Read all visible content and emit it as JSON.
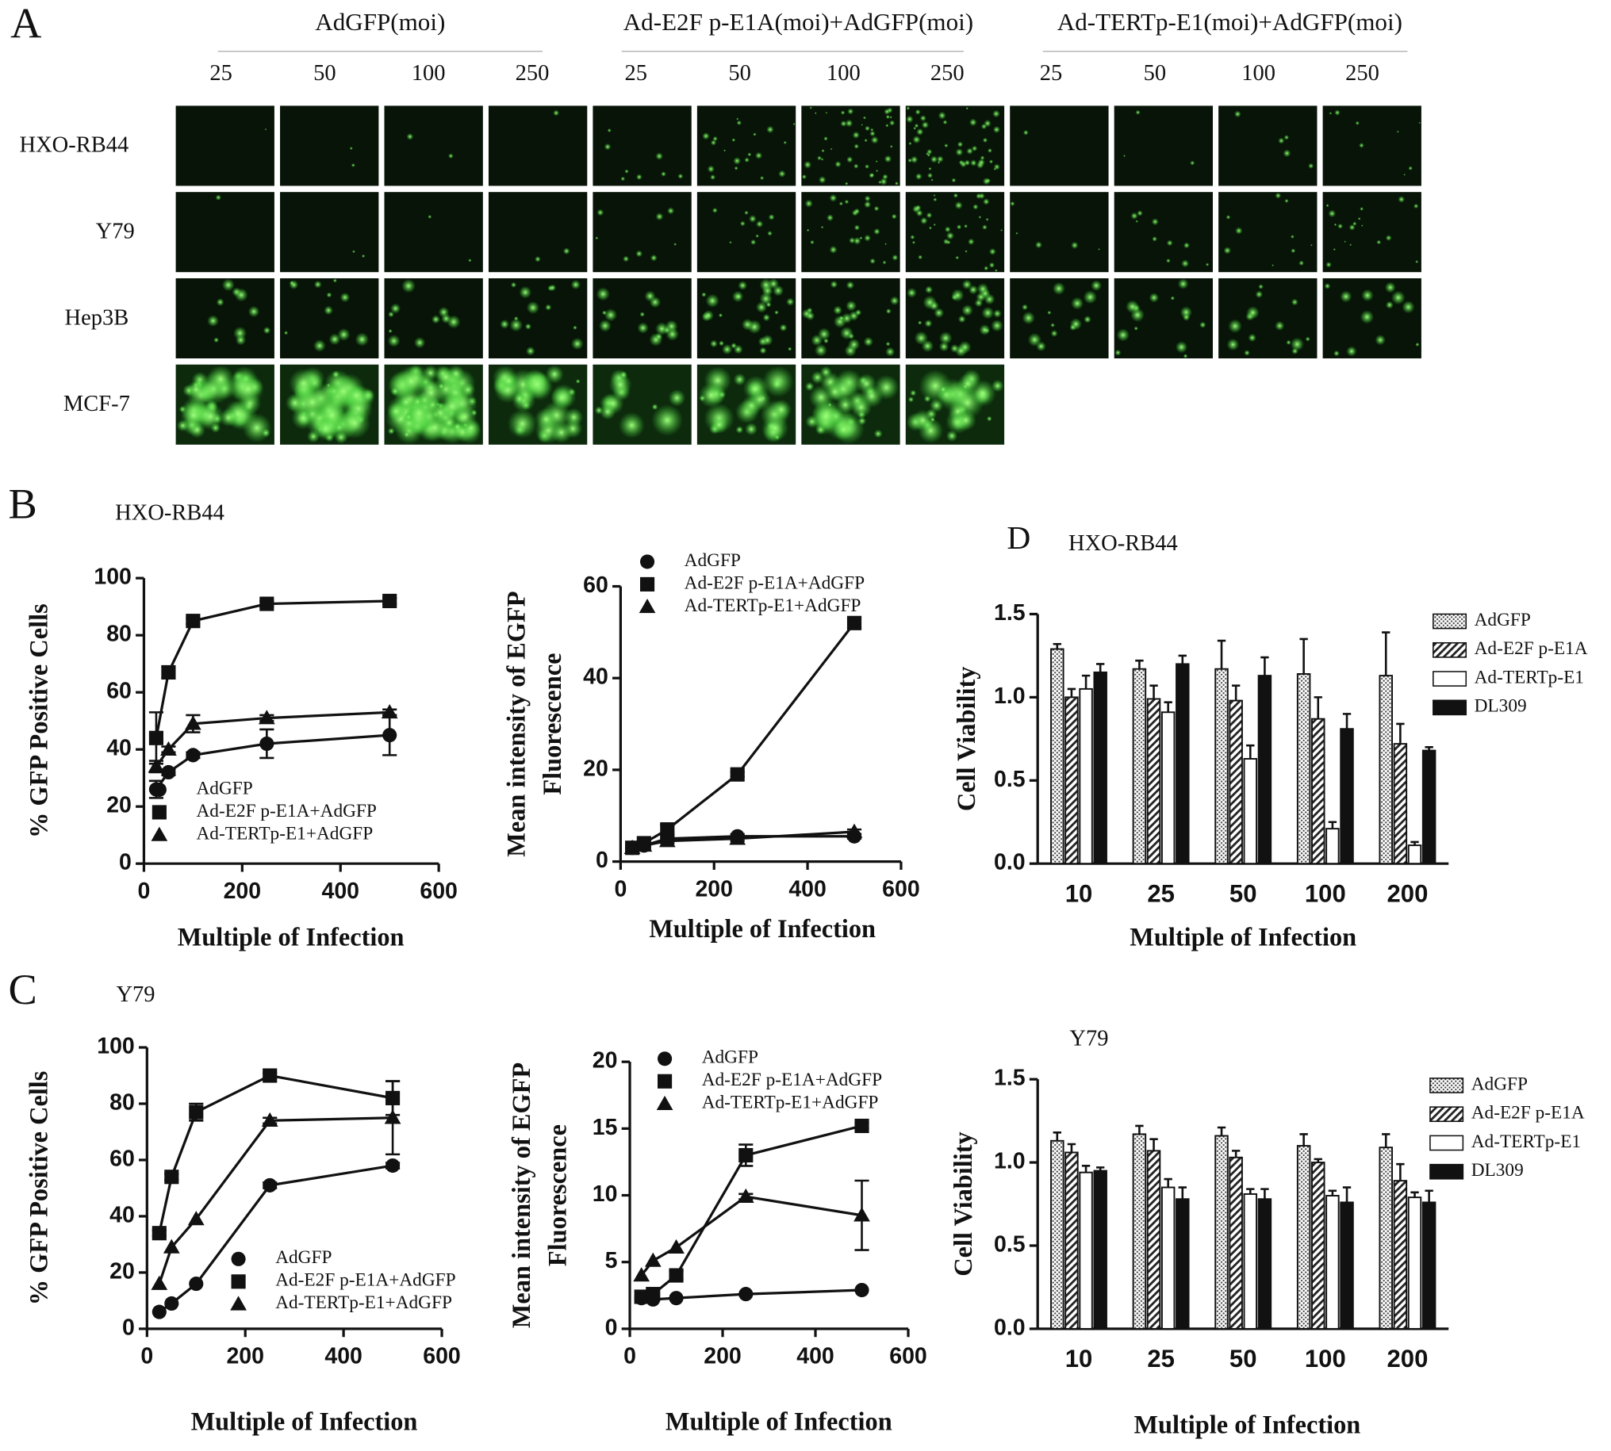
{
  "panel_labels": [
    "A",
    "B",
    "C",
    "D"
  ],
  "panel_a": {
    "groups": [
      "AdGFP(moi)",
      "Ad-E2F p-E1A(moi)+AdGFP(moi)",
      "Ad-TERTp-E1(moi)+AdGFP(moi)"
    ],
    "moi": [
      "25",
      "50",
      "100",
      "250"
    ],
    "rows": [
      "HXO-RB44",
      "Y79",
      "Hep3B",
      "MCF-7"
    ]
  },
  "chart_data": [
    {
      "type": "line",
      "title": "HXO-RB44",
      "y_label": [
        "% GFP Positive Cells"
      ],
      "x_label": "Multiple of Infection",
      "x": [
        25,
        50,
        100,
        250,
        500
      ],
      "xlim": [
        0,
        600
      ],
      "xticks": [
        0,
        200,
        400,
        600
      ],
      "ylim": [
        0,
        100
      ],
      "yticks": [
        0,
        20,
        40,
        60,
        80,
        100
      ],
      "legend": "lower right",
      "series": [
        {
          "name": "AdGFP",
          "color": "#111111",
          "marker": "circle",
          "values": [
            26,
            32,
            38,
            42,
            45
          ],
          "errors": [
            3,
            1,
            1,
            5,
            7
          ]
        },
        {
          "name": "Ad-E2F p-E1A+AdGFP",
          "color": "#111111",
          "marker": "square",
          "values": [
            44,
            67,
            85,
            91,
            92
          ],
          "errors": [
            9,
            2,
            1,
            1,
            1
          ]
        },
        {
          "name": "Ad-TERTp-E1+AdGFP",
          "color": "#111111",
          "marker": "triangle",
          "values": [
            34,
            40,
            49,
            51,
            53
          ],
          "errors": [
            2,
            1,
            3,
            1,
            1
          ]
        }
      ]
    },
    {
      "type": "line",
      "y_label": [
        "Mean intensity of EGFP",
        "Fluorescence"
      ],
      "x_label": "Multiple of Infection",
      "x": [
        25,
        50,
        100,
        250,
        500
      ],
      "xlim": [
        0,
        600
      ],
      "xticks": [
        0,
        200,
        400,
        600
      ],
      "ylim": [
        0,
        60
      ],
      "yticks": [
        0,
        20,
        40,
        60
      ],
      "legend": "upper left",
      "series": [
        {
          "name": "AdGFP",
          "color": "#111111",
          "marker": "circle",
          "values": [
            3,
            3.5,
            5,
            5.5,
            5.5
          ],
          "errors": [
            0,
            0,
            0.5,
            0.5,
            0.5
          ]
        },
        {
          "name": "Ad-E2F p-E1A+AdGFP",
          "color": "#111111",
          "marker": "square",
          "values": [
            3,
            4,
            7,
            19,
            52
          ],
          "errors": [
            0,
            0,
            1,
            0.5,
            1
          ]
        },
        {
          "name": "Ad-TERTp-E1+AdGFP",
          "color": "#111111",
          "marker": "triangle",
          "values": [
            3,
            3.5,
            4.5,
            5,
            6.5
          ],
          "errors": [
            0,
            0,
            0.5,
            0.5,
            0.5
          ]
        }
      ]
    },
    {
      "type": "bar",
      "title": "HXO-RB44",
      "y_label": [
        "Cell Viability"
      ],
      "x_label": "Multiple of Infection",
      "categories": [
        "10",
        "25",
        "50",
        "100",
        "200"
      ],
      "ylim": [
        0,
        1.5
      ],
      "yticks": [
        {
          "value": 0,
          "label": "0.0"
        },
        0.5,
        {
          "value": 1,
          "label": "1.0"
        },
        1.5
      ],
      "legend": "right",
      "series": [
        {
          "name": "AdGFP",
          "color": "#111111",
          "pattern": "dotted",
          "values": [
            1.29,
            1.17,
            1.17,
            1.14,
            1.13
          ],
          "errors": [
            0.03,
            0.05,
            0.17,
            0.21,
            0.26
          ]
        },
        {
          "name": "Ad-E2F p-E1A",
          "color": "#111111",
          "pattern": "hatched",
          "values": [
            1.0,
            0.99,
            0.98,
            0.87,
            0.72
          ],
          "errors": [
            0.05,
            0.08,
            0.09,
            0.13,
            0.12
          ]
        },
        {
          "name": "Ad-TERTp-E1",
          "color": "#111111",
          "pattern": "open",
          "values": [
            1.05,
            0.91,
            0.63,
            0.21,
            0.11
          ],
          "errors": [
            0.08,
            0.06,
            0.08,
            0.04,
            0.02
          ]
        },
        {
          "name": "DL309",
          "color": "#111111",
          "pattern": "solid",
          "values": [
            1.15,
            1.2,
            1.13,
            0.81,
            0.68
          ],
          "errors": [
            0.05,
            0.05,
            0.11,
            0.09,
            0.02
          ]
        }
      ]
    },
    {
      "type": "line",
      "title": "Y79",
      "y_label": [
        "% GFP Positive Cells"
      ],
      "x_label": "Multiple of Infection",
      "x": [
        25,
        50,
        100,
        250,
        500
      ],
      "xlim": [
        0,
        600
      ],
      "xticks": [
        0,
        200,
        400,
        600
      ],
      "ylim": [
        0,
        100
      ],
      "yticks": [
        0,
        20,
        40,
        60,
        80,
        100
      ],
      "legend": "lower right",
      "series": [
        {
          "name": "AdGFP",
          "color": "#111111",
          "marker": "circle",
          "values": [
            6,
            9,
            16,
            51,
            58
          ],
          "errors": [
            0,
            0,
            0,
            1,
            1
          ]
        },
        {
          "name": "Ad-E2F p-E1A+AdGFP",
          "color": "#111111",
          "marker": "square",
          "values": [
            34,
            54,
            77,
            90,
            82
          ],
          "errors": [
            1,
            1,
            3,
            1,
            6
          ]
        },
        {
          "name": "Ad-TERTp-E1+AdGFP",
          "color": "#111111",
          "marker": "triangle",
          "values": [
            16,
            29,
            39,
            74,
            75
          ],
          "errors": [
            0,
            0,
            0,
            1,
            13
          ]
        }
      ]
    },
    {
      "type": "line",
      "y_label": [
        "Mean intensity of EGFP",
        "Fluorescence"
      ],
      "x_label": "Multiple of Infection",
      "x": [
        25,
        50,
        100,
        250,
        500
      ],
      "xlim": [
        0,
        600
      ],
      "xticks": [
        0,
        200,
        400,
        600
      ],
      "ylim": [
        0,
        20
      ],
      "yticks": [
        0,
        5,
        10,
        15,
        20
      ],
      "legend": "upper left",
      "series": [
        {
          "name": "AdGFP",
          "color": "#111111",
          "marker": "circle",
          "values": [
            2.3,
            2.2,
            2.3,
            2.6,
            2.9
          ],
          "errors": [
            0,
            0,
            0,
            0,
            0
          ]
        },
        {
          "name": "Ad-E2F p-E1A+AdGFP",
          "color": "#111111",
          "marker": "square",
          "values": [
            2.4,
            2.6,
            4,
            13,
            15.2
          ],
          "errors": [
            0,
            0,
            0.3,
            0.8,
            0.2
          ]
        },
        {
          "name": "Ad-TERTp-E1+AdGFP",
          "color": "#111111",
          "marker": "triangle",
          "values": [
            4,
            5.1,
            6.1,
            9.9,
            8.5
          ],
          "errors": [
            0,
            0,
            0,
            0.2,
            2.6
          ]
        }
      ]
    },
    {
      "type": "bar",
      "title": "Y79",
      "y_label": [
        "Cell Viability"
      ],
      "x_label": "Multiple of Infection",
      "categories": [
        "10",
        "25",
        "50",
        "100",
        "200"
      ],
      "ylim": [
        0,
        1.5
      ],
      "yticks": [
        {
          "value": 0,
          "label": "0.0"
        },
        0.5,
        {
          "value": 1,
          "label": "1.0"
        },
        1.5
      ],
      "legend": "right",
      "series": [
        {
          "name": "AdGFP",
          "color": "#111111",
          "pattern": "dotted",
          "values": [
            1.13,
            1.17,
            1.16,
            1.1,
            1.09
          ],
          "errors": [
            0.05,
            0.05,
            0.05,
            0.07,
            0.08
          ]
        },
        {
          "name": "Ad-E2F p-E1A",
          "color": "#111111",
          "pattern": "hatched",
          "values": [
            1.06,
            1.07,
            1.03,
            1.0,
            0.89
          ],
          "errors": [
            0.05,
            0.07,
            0.04,
            0.02,
            0.1
          ]
        },
        {
          "name": "Ad-TERTp-E1",
          "color": "#111111",
          "pattern": "open",
          "values": [
            0.94,
            0.85,
            0.81,
            0.8,
            0.79
          ],
          "errors": [
            0.04,
            0.05,
            0.03,
            0.03,
            0.03
          ]
        },
        {
          "name": "DL309",
          "color": "#111111",
          "pattern": "solid",
          "values": [
            0.95,
            0.78,
            0.78,
            0.76,
            0.76
          ],
          "errors": [
            0.02,
            0.07,
            0.06,
            0.09,
            0.07
          ]
        }
      ]
    }
  ]
}
